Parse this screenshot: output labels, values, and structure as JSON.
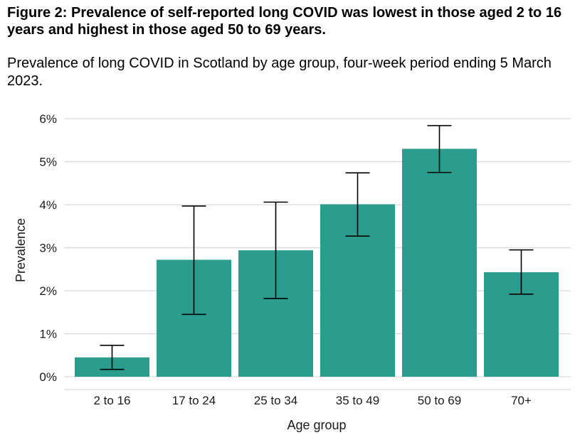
{
  "chart_data": {
    "type": "bar",
    "title": "Figure 2: Prevalence of self-reported long COVID was lowest in those aged 2 to 16 years and highest in those aged 50 to 69 years.",
    "subtitle": "Prevalence of long COVID in Scotland by age group, four-week period ending 5 March 2023.",
    "xlabel": "Age group",
    "ylabel": "Prevalence",
    "categories": [
      "2 to 16",
      "17 to 24",
      "25 to 34",
      "35 to 49",
      "50 to 69",
      "70+"
    ],
    "values": [
      0.45,
      2.72,
      2.94,
      4.01,
      5.3,
      2.43
    ],
    "error_low": [
      0.17,
      1.45,
      1.82,
      3.27,
      4.75,
      1.92
    ],
    "error_high": [
      0.73,
      3.97,
      4.06,
      4.74,
      5.84,
      2.95
    ],
    "ylim": [
      0,
      6
    ],
    "yticks": [
      "0%",
      "1%",
      "2%",
      "3%",
      "4%",
      "5%",
      "6%"
    ],
    "grid": true,
    "bar_color": "#2a9d8f",
    "error_color": "#000000",
    "grid_color": "#d9d9d9"
  }
}
